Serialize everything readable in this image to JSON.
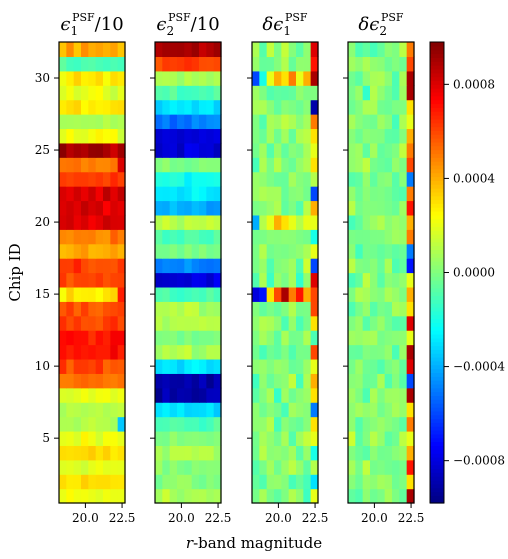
{
  "chart_data": {
    "type": "heatmap",
    "ylabel": "Chip ID",
    "xlabel_prefix": "r",
    "xlabel_suffix": "-band magnitude",
    "ylim": [
      0.5,
      32.5
    ],
    "xlim": [
      18.2,
      22.7
    ],
    "yticks": [
      5,
      10,
      15,
      20,
      25,
      30
    ],
    "xticks": [
      20.0,
      22.5
    ],
    "n_rows": 32,
    "n_cols": 9,
    "panels": [
      {
        "title_prefix": "ϵ",
        "title_sub": "1",
        "title_sup": "PSF",
        "title_suffix": "/10",
        "row_values": [
          0.0002,
          0.0003,
          0.0002,
          0.0003,
          0.0002,
          0.0001,
          0.0001,
          0.0002,
          0.0005,
          0.0006,
          0.0007,
          0.0007,
          0.0006,
          0.0006,
          0.0003,
          0.0006,
          0.0006,
          0.0004,
          0.0005,
          0.0008,
          0.0008,
          0.0008,
          0.0006,
          0.0005,
          0.0009,
          0.0002,
          0.0001,
          0.0003,
          0.0002,
          0.0003,
          -0.0001,
          0.0004
        ]
      },
      {
        "title_prefix": "ϵ",
        "title_sub": "2",
        "title_sup": "PSF",
        "title_suffix": "/10",
        "row_values": [
          0.0001,
          0.0,
          0.0,
          0.0001,
          0.0,
          -0.0001,
          -0.0003,
          -0.0009,
          -0.0009,
          -0.0003,
          0.0001,
          0.0,
          0.0001,
          0.0001,
          -0.0001,
          -0.0008,
          -0.0005,
          0.0,
          -0.0001,
          0.0001,
          -0.0004,
          -0.0003,
          -0.0002,
          0.0,
          -0.0008,
          -0.0008,
          -0.0005,
          -0.0003,
          -0.0001,
          0.0001,
          0.0006,
          0.0009
        ]
      },
      {
        "title_prefix": "δϵ",
        "title_sub": "1",
        "title_sup": "PSF",
        "title_suffix": ""
      },
      {
        "title_prefix": "δϵ",
        "title_sub": "2",
        "title_sup": "PSF",
        "title_suffix": ""
      }
    ],
    "colorbar": {
      "colormap": "jet",
      "vmin": -0.00098,
      "vmax": 0.00098,
      "ticks": [
        -0.0008,
        -0.0004,
        0.0,
        0.0004,
        0.0008
      ],
      "tick_labels": [
        "−0.0008",
        "−0.0004",
        "0.0000",
        "0.0004",
        "0.0008"
      ]
    }
  }
}
